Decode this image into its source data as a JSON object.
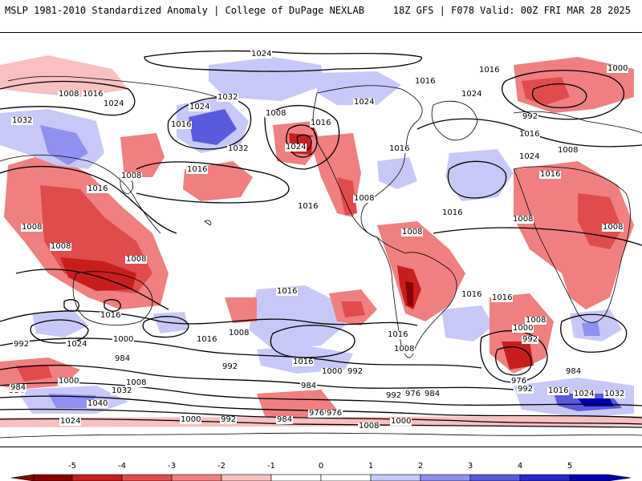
{
  "header": {
    "left": "MSLP 1981-2010 Standardized Anomaly | College of DuPage NEXLAB",
    "right": "18Z GFS | F078 Valid: 00Z FRI MAR 28 2025"
  },
  "colors": {
    "neg5": "#8b0000",
    "neg4": "#c81e1e",
    "neg3": "#e04c4c",
    "neg2": "#f08080",
    "neg1": "#f8c0c0",
    "pos1": "#c8c8f8",
    "pos2": "#9090f0",
    "pos3": "#5a5ae0",
    "pos4": "#2828d0",
    "pos5": "#0000b0"
  },
  "colorbar": {
    "ticks": [
      "-5",
      "-4",
      "-3",
      "-2",
      "-1",
      "0",
      "1",
      "2",
      "3",
      "4",
      "5"
    ]
  },
  "isobar_labels": [
    "1024",
    "1016",
    "1008",
    "1016",
    "1024",
    "1032",
    "1024",
    "1032",
    "1024",
    "1016",
    "1016",
    "1032",
    "1016",
    "1008",
    "1024",
    "1016",
    "1008",
    "1016",
    "1016",
    "1024",
    "1008",
    "1000",
    "1016",
    "992",
    "1016",
    "1008",
    "1024",
    "1016",
    "1008",
    "1016",
    "1016",
    "1008",
    "1008",
    "1008",
    "1008",
    "1008",
    "1016",
    "1016",
    "1016",
    "1016",
    "1008",
    "1016",
    "992",
    "1024",
    "1000",
    "984",
    "1008",
    "992",
    "1016",
    "1000",
    "992",
    "1016",
    "1008",
    "1008",
    "1000",
    "992",
    "984",
    "976",
    "992",
    "984",
    "1000",
    "984",
    "1032",
    "1040",
    "1008",
    "976",
    "984",
    "992",
    "976",
    "984",
    "1016",
    "1024",
    "1032",
    "1024",
    "1000",
    "992",
    "984",
    "976",
    "1000",
    "1008"
  ]
}
